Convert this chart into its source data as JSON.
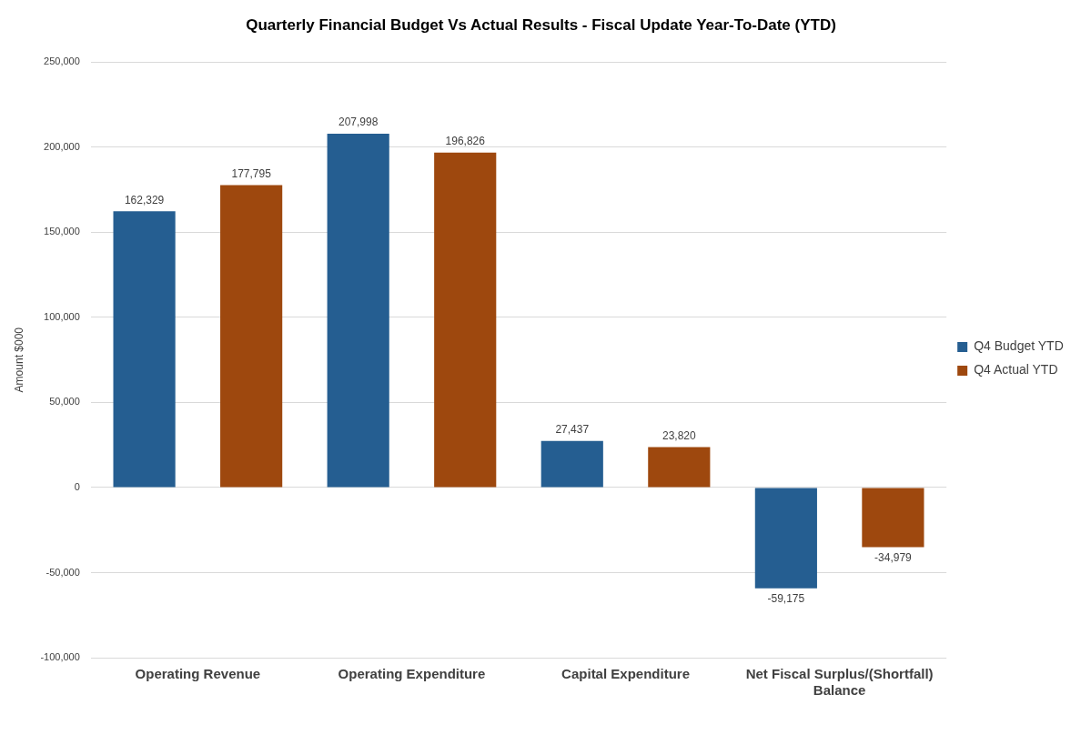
{
  "chart_data": {
    "type": "bar",
    "title": "Quarterly Financial Budget Vs Actual Results - Fiscal Update Year-To-Date (YTD)",
    "ylabel": "Amount $000",
    "categories": [
      "Operating Revenue",
      "Operating Expenditure",
      "Capital Expenditure",
      "Net Fiscal Surplus/(Shortfall) Balance"
    ],
    "series": [
      {
        "name": "Q4 Budget YTD",
        "color": "#255e91",
        "values": [
          162329,
          207998,
          27437,
          -59175
        ],
        "value_labels": [
          "162,329",
          "207,998",
          "27,437",
          "-59,175"
        ]
      },
      {
        "name": "Q4 Actual YTD",
        "color": "#9e480e",
        "values": [
          177795,
          196826,
          23820,
          -34979
        ],
        "value_labels": [
          "177,795",
          "196,826",
          "23,820",
          "-34,979"
        ]
      }
    ],
    "ylim": [
      -100000,
      250000
    ],
    "yticks": [
      {
        "value": -100000,
        "label": "-100,000"
      },
      {
        "value": -50000,
        "label": "-50,000"
      },
      0,
      {
        "value": 50000,
        "label": "50,000"
      },
      {
        "value": 100000,
        "label": "100,000"
      },
      {
        "value": 150000,
        "label": "150,000"
      },
      {
        "value": 200000,
        "label": "200,000"
      },
      {
        "value": 250000,
        "label": "250,000"
      }
    ],
    "grid": "y",
    "legend": "right"
  }
}
